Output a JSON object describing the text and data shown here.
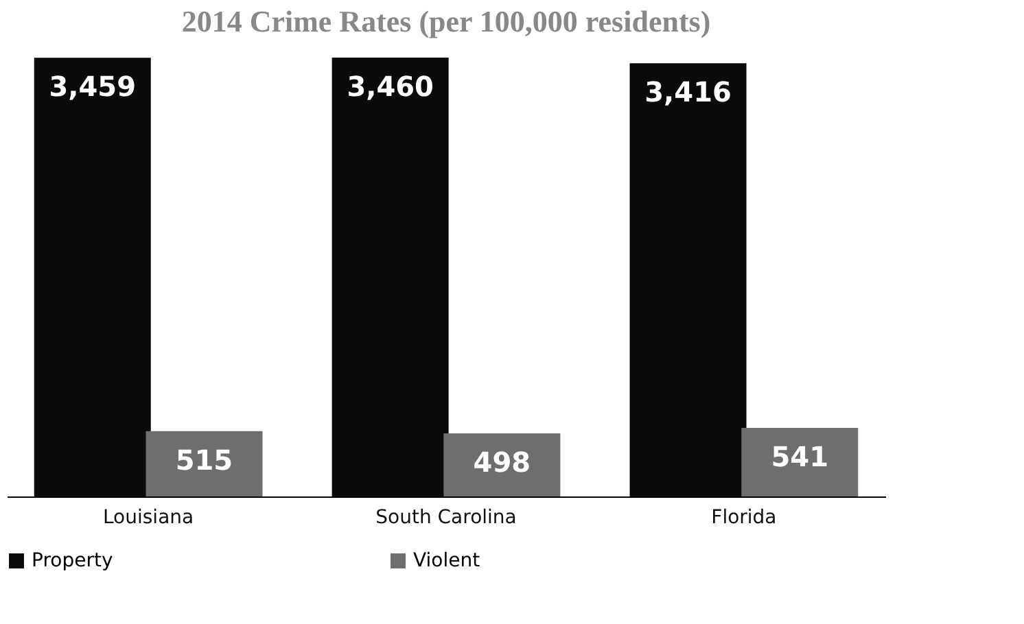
{
  "chart_data": {
    "type": "bar",
    "title": "2014 Crime Rates (per 100,000 residents)",
    "categories": [
      "Louisiana",
      "South Carolina",
      "Florida"
    ],
    "series": [
      {
        "name": "Property",
        "color": "#0a0a0a",
        "values": [
          3459,
          3460,
          3416
        ],
        "value_labels": [
          "3,459",
          "3,460",
          "3,416"
        ]
      },
      {
        "name": "Violent",
        "color": "#6e6e6e",
        "values": [
          515,
          498,
          541
        ],
        "value_labels": [
          "515",
          "498",
          "541"
        ]
      }
    ],
    "legend": "bottom left",
    "grid": false
  }
}
